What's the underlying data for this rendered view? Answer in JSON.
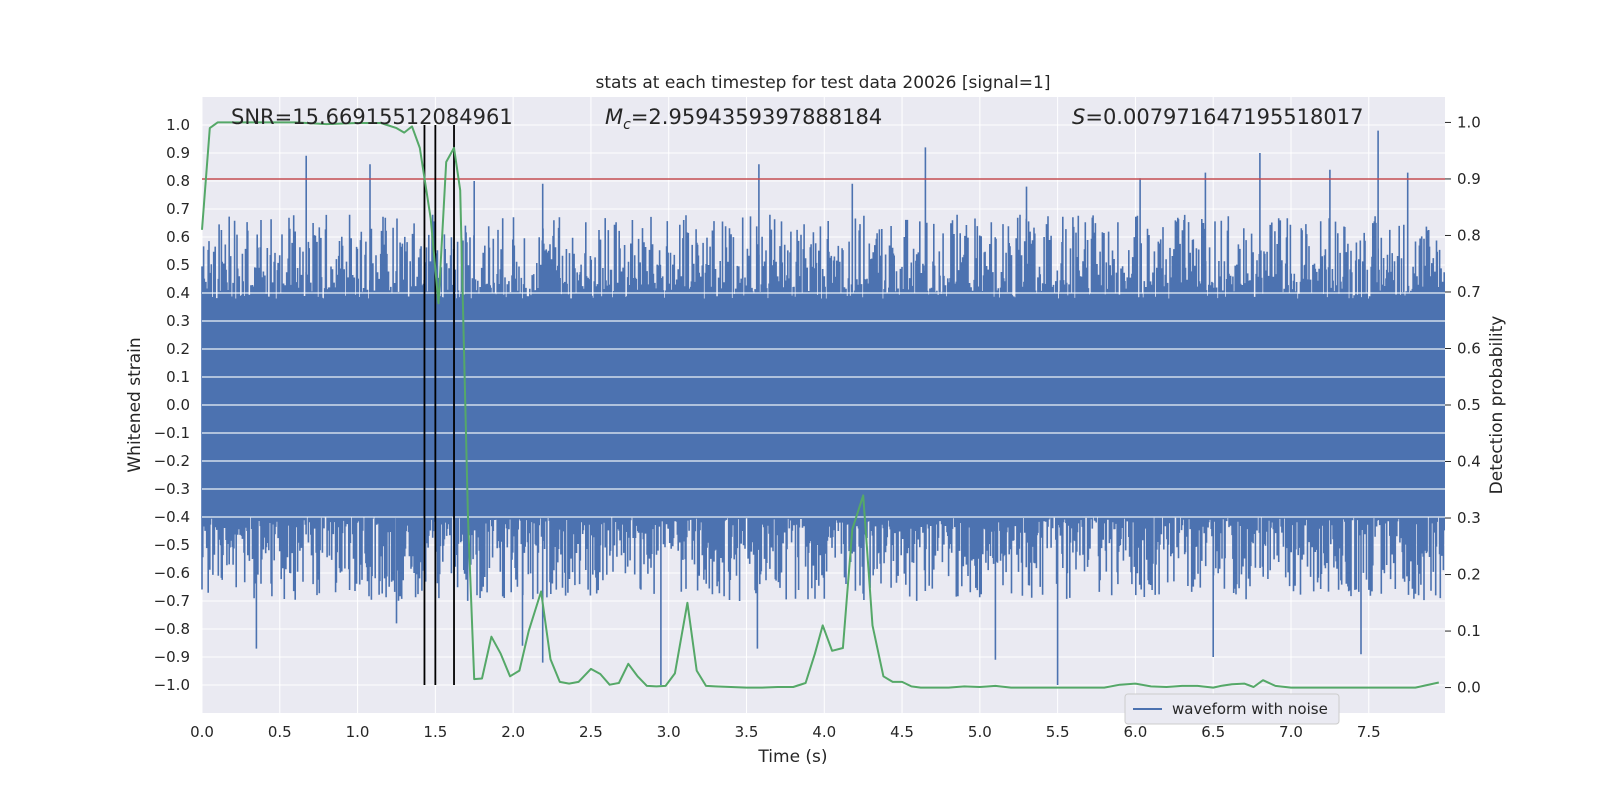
{
  "chart_data": {
    "type": "line",
    "title": "stats at each timestep for test data 20026 [signal=1]",
    "xlabel": "Time (s)",
    "ylabel_left": "Whitened strain",
    "ylabel_right": "Detection probability",
    "xlim": [
      0.0,
      7.99
    ],
    "ylim_left": [
      -1.1,
      1.1
    ],
    "ylim_right": [
      -0.045,
      1.045
    ],
    "grid": true,
    "legend_position": "lower-right",
    "x_ticks": [
      "0.0",
      "0.5",
      "1.0",
      "1.5",
      "2.0",
      "2.5",
      "3.0",
      "3.5",
      "4.0",
      "4.5",
      "5.0",
      "5.5",
      "6.0",
      "6.5",
      "7.0",
      "7.5"
    ],
    "y_left_ticks": [
      "1.0",
      "0.9",
      "0.8",
      "0.7",
      "0.6",
      "0.5",
      "0.4",
      "0.3",
      "0.2",
      "0.1",
      "0.0",
      "-0.1",
      "-0.2",
      "-0.3",
      "-0.4",
      "-0.5",
      "-0.6",
      "-0.7",
      "-0.8",
      "-0.9",
      "-1.0"
    ],
    "y_right_ticks": [
      "1.0",
      "0.9",
      "0.8",
      "0.7",
      "0.6",
      "0.5",
      "0.4",
      "0.3",
      "0.2",
      "0.1",
      "0.0"
    ],
    "annotations": {
      "snr": "SNR=15.66915512084961",
      "mc_symbol": "M",
      "mc_sub": "c",
      "mc_value": "=2.9594359397888184",
      "s_symbol": "S",
      "s_value": "=0.007971647195518017"
    },
    "threshold": {
      "axis": "right",
      "value": 0.9,
      "color": "#c44e52"
    },
    "vertical_lines": [
      1.43,
      1.5,
      1.62
    ],
    "series": [
      {
        "name": "waveform with noise",
        "axis": "left",
        "color": "#4c72b0",
        "kind": "noise",
        "band_low": -0.4,
        "band_high": 0.38,
        "spikes_up": [
          [
            0.67,
            0.89
          ],
          [
            1.08,
            0.86
          ],
          [
            1.75,
            0.8
          ],
          [
            2.19,
            0.79
          ],
          [
            3.58,
            0.86
          ],
          [
            4.18,
            0.79
          ],
          [
            4.65,
            0.92
          ],
          [
            5.3,
            0.78
          ],
          [
            6.03,
            0.81
          ],
          [
            6.45,
            0.83
          ],
          [
            6.8,
            0.9
          ],
          [
            7.25,
            0.84
          ],
          [
            7.56,
            0.98
          ],
          [
            7.75,
            0.83
          ]
        ],
        "spikes_down": [
          [
            0.35,
            -0.87
          ],
          [
            1.25,
            -0.78
          ],
          [
            2.06,
            -0.86
          ],
          [
            2.19,
            -0.92
          ],
          [
            2.95,
            -1.0
          ],
          [
            3.57,
            -0.87
          ],
          [
            5.1,
            -0.91
          ],
          [
            5.5,
            -1.0
          ],
          [
            6.5,
            -0.9
          ],
          [
            7.45,
            -0.89
          ]
        ]
      },
      {
        "name": "",
        "axis": "right",
        "color": "#55a868",
        "kind": "line",
        "x": [
          0.0,
          0.05,
          0.1,
          0.2,
          0.4,
          0.6,
          0.8,
          1.0,
          1.15,
          1.25,
          1.3,
          1.35,
          1.4,
          1.47,
          1.52,
          1.57,
          1.62,
          1.66,
          1.71,
          1.75,
          1.8,
          1.86,
          1.92,
          1.98,
          2.04,
          2.1,
          2.18,
          2.24,
          2.3,
          2.36,
          2.42,
          2.5,
          2.56,
          2.62,
          2.68,
          2.74,
          2.8,
          2.86,
          2.92,
          2.98,
          3.04,
          3.12,
          3.18,
          3.24,
          3.3,
          3.4,
          3.5,
          3.6,
          3.7,
          3.8,
          3.88,
          3.94,
          3.99,
          4.05,
          4.12,
          4.18,
          4.25,
          4.31,
          4.38,
          4.44,
          4.5,
          4.56,
          4.62,
          4.7,
          4.8,
          4.9,
          5.0,
          5.1,
          5.2,
          5.3,
          5.4,
          5.5,
          5.6,
          5.7,
          5.8,
          5.9,
          6.0,
          6.1,
          6.2,
          6.3,
          6.4,
          6.5,
          6.55,
          6.62,
          6.7,
          6.76,
          6.82,
          6.9,
          7.0,
          7.2,
          7.4,
          7.6,
          7.8,
          7.95
        ],
        "y": [
          0.81,
          0.99,
          1.0,
          1.0,
          1.0,
          1.0,
          0.997,
          0.999,
          0.999,
          0.99,
          0.982,
          0.993,
          0.955,
          0.83,
          0.68,
          0.93,
          0.955,
          0.88,
          0.3,
          0.015,
          0.016,
          0.09,
          0.06,
          0.02,
          0.03,
          0.1,
          0.17,
          0.05,
          0.01,
          0.007,
          0.01,
          0.033,
          0.024,
          0.005,
          0.008,
          0.042,
          0.02,
          0.003,
          0.002,
          0.003,
          0.025,
          0.15,
          0.03,
          0.003,
          0.002,
          0.001,
          0.0,
          0.0,
          0.001,
          0.001,
          0.008,
          0.06,
          0.11,
          0.065,
          0.07,
          0.28,
          0.34,
          0.11,
          0.02,
          0.01,
          0.01,
          0.002,
          0.0,
          0.0,
          0.0,
          0.002,
          0.001,
          0.003,
          0.0,
          0.0,
          0.0,
          0.0,
          0.0,
          0.0,
          0.0,
          0.005,
          0.007,
          0.002,
          0.001,
          0.003,
          0.003,
          0.0,
          0.003,
          0.006,
          0.007,
          0.001,
          0.013,
          0.003,
          0.0,
          0.0,
          0.0,
          0.0,
          0.0,
          0.009
        ]
      }
    ]
  }
}
